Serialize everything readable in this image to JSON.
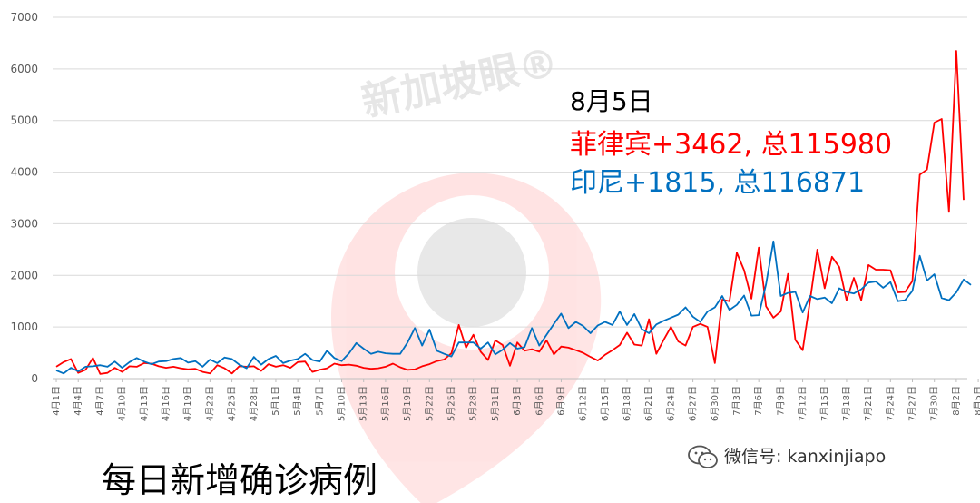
{
  "chart_data": {
    "type": "line",
    "ylim": [
      0,
      7000
    ],
    "yticks": [
      0,
      1000,
      2000,
      3000,
      4000,
      5000,
      6000,
      7000
    ],
    "grid": "horizontal",
    "x_tick_labels": [
      "4月1日",
      "4月4日",
      "4月7日",
      "4月10日",
      "4月13日",
      "4月16日",
      "4月19日",
      "4月22日",
      "4月25日",
      "4月28日",
      "5月1日",
      "5月4日",
      "5月7日",
      "5月10日",
      "5月13日",
      "5月16日",
      "5月19日",
      "5月22日",
      "5月25日",
      "5月28日",
      "5月31日",
      "6月3日",
      "6月6日",
      "6月9日",
      "6月12日",
      "6月15日",
      "6月18日",
      "6月21日",
      "6月24日",
      "6月27日",
      "6月30日",
      "7月3日",
      "7月6日",
      "7月9日",
      "7月12日",
      "7月15日",
      "7月18日",
      "7月21日",
      "7月24日",
      "7月27日",
      "7月30日",
      "8月2日",
      "8月5日"
    ],
    "series": [
      {
        "name": "菲律宾",
        "color": "#ff0000",
        "values": [
          230,
          320,
          380,
          110,
          170,
          400,
          90,
          110,
          210,
          130,
          240,
          230,
          300,
          290,
          240,
          210,
          230,
          200,
          180,
          190,
          130,
          100,
          260,
          200,
          100,
          240,
          230,
          240,
          150,
          280,
          230,
          260,
          210,
          320,
          330,
          130,
          170,
          200,
          290,
          260,
          270,
          250,
          210,
          190,
          200,
          230,
          290,
          220,
          170,
          180,
          240,
          280,
          340,
          370,
          490,
          1040,
          600,
          850,
          520,
          360,
          740,
          650,
          250,
          700,
          540,
          570,
          520,
          740,
          470,
          620,
          600,
          550,
          500,
          420,
          350,
          460,
          550,
          650,
          890,
          660,
          640,
          1150,
          480,
          750,
          1000,
          720,
          640,
          1000,
          1060,
          1000,
          300,
          1530,
          1500,
          2440,
          2100,
          1550,
          2540,
          1400,
          1180,
          1300,
          2030,
          750,
          550,
          1500,
          2500,
          1750,
          2360,
          2160,
          1520,
          1950,
          1520,
          2200,
          2110,
          2110,
          2100,
          1670,
          1680,
          1890,
          3950,
          4050,
          4960,
          5030,
          3230,
          6350,
          3462
        ]
      },
      {
        "name": "印尼",
        "color": "#0070c0",
        "values": [
          160,
          100,
          210,
          140,
          230,
          240,
          260,
          230,
          330,
          210,
          320,
          400,
          330,
          280,
          330,
          340,
          380,
          400,
          310,
          340,
          230,
          370,
          300,
          410,
          380,
          270,
          200,
          420,
          270,
          380,
          440,
          300,
          350,
          380,
          480,
          360,
          330,
          540,
          400,
          340,
          490,
          690,
          580,
          480,
          520,
          490,
          480,
          480,
          700,
          980,
          640,
          950,
          540,
          480,
          430,
          700,
          700,
          700,
          580,
          700,
          470,
          560,
          690,
          580,
          610,
          980,
          640,
          850,
          1060,
          1260,
          980,
          1100,
          1020,
          880,
          1030,
          1100,
          1040,
          1300,
          1040,
          1250,
          960,
          880,
          1050,
          1120,
          1180,
          1240,
          1380,
          1200,
          1100,
          1300,
          1380,
          1600,
          1330,
          1430,
          1610,
          1220,
          1230,
          1830,
          2660,
          1600,
          1660,
          1680,
          1280,
          1600,
          1540,
          1570,
          1460,
          1750,
          1680,
          1650,
          1730,
          1860,
          1880,
          1760,
          1870,
          1500,
          1520,
          1700,
          2380,
          1900,
          2020,
          1560,
          1520,
          1670,
          1920,
          1815
        ]
      }
    ],
    "annotations": {
      "date": "8月5日",
      "philippines": "菲律宾+3462, 总115980",
      "indonesia": "印尼+1815, 总116871"
    },
    "title": "每日新增确诊病例"
  },
  "watermark": {
    "icon": "wechat-icon",
    "text": "微信号: kanxinjiapo"
  },
  "logo": {
    "text": "新加坡眼®"
  }
}
